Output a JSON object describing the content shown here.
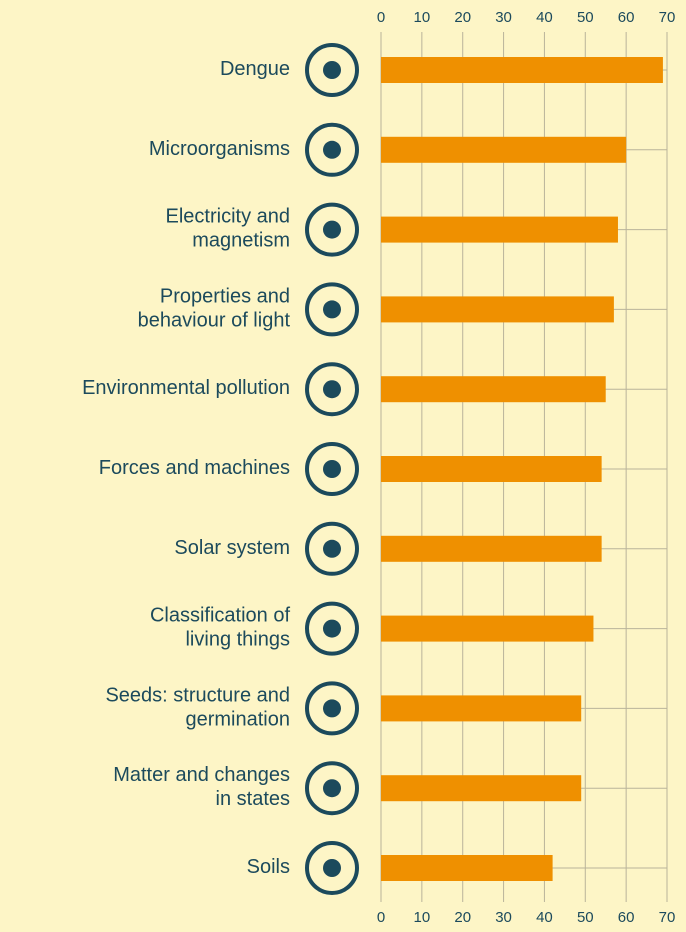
{
  "chart_data": {
    "type": "bar",
    "orientation": "horizontal",
    "categories": [
      "Dengue",
      "Microorganisms",
      "Electricity and\nmagnetism",
      "Properties and\nbehaviour of light",
      "Environmental pollution",
      "Forces and machines",
      "Solar system",
      "Classification of\nliving things",
      "Seeds: structure and\ngermination",
      "Matter and changes\nin states",
      "Soils"
    ],
    "values": [
      69,
      60,
      58,
      57,
      55,
      54,
      54,
      52,
      49,
      49,
      42
    ],
    "color": "#ef9000",
    "xlim": [
      0,
      70
    ],
    "xticks": [
      0,
      10,
      20,
      30,
      40,
      50,
      60,
      70
    ],
    "grid": true
  }
}
